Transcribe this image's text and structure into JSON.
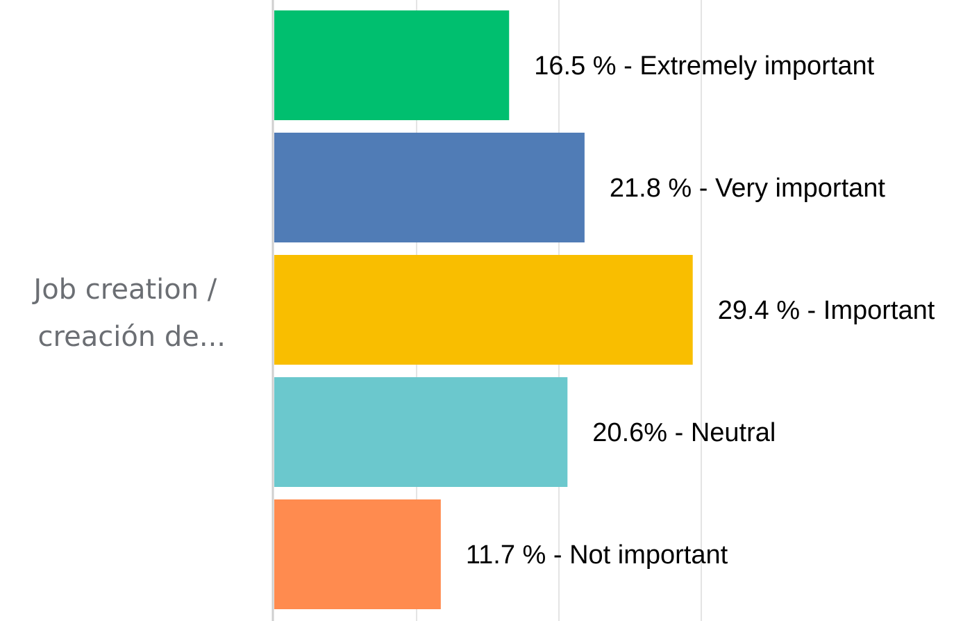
{
  "chart_data": {
    "type": "bar",
    "orientation": "horizontal",
    "category": "Job creation / creación de...",
    "category_lines": [
      "Job creation /",
      "creación de..."
    ],
    "series": [
      {
        "label": "16.5 % - Extremely important",
        "value": 16.5,
        "color": "#00bf6f"
      },
      {
        "label": "21.8 % - Very important",
        "value": 21.8,
        "color": "#507cb6"
      },
      {
        "label": "29.4 % - Important",
        "value": 29.4,
        "color": "#f9be00"
      },
      {
        "label": "20.6% - Neutral",
        "value": 20.6,
        "color": "#6bc8cd"
      },
      {
        "label": "11.7 % - Not important",
        "value": 11.7,
        "color": "#ff8b4f"
      }
    ],
    "xlim": [
      0,
      30
    ],
    "grid": true,
    "legend": "none"
  }
}
